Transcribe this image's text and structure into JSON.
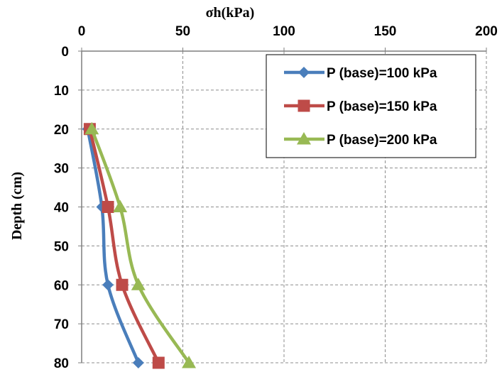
{
  "chart_data": {
    "type": "line",
    "xlabel": "σh(kPa)",
    "ylabel": "Depth (cm)",
    "x_axis_position": "top",
    "y_axis_inverted": true,
    "xlim": [
      0,
      200
    ],
    "ylim": [
      0,
      80
    ],
    "xticks": [
      0,
      50,
      100,
      150,
      200
    ],
    "yticks": [
      0,
      10,
      20,
      30,
      40,
      50,
      60,
      70,
      80
    ],
    "grid": true,
    "legend_position": "top-right",
    "series": [
      {
        "name": "P (base)=100 kPa",
        "color": "#4a7ebb",
        "marker": "diamond",
        "points": [
          {
            "x": 3,
            "y": 20
          },
          {
            "x": 10,
            "y": 40
          },
          {
            "x": 13,
            "y": 60
          },
          {
            "x": 28,
            "y": 80
          }
        ]
      },
      {
        "name": "P (base)=150 kPa",
        "color": "#be4b48",
        "marker": "square",
        "points": [
          {
            "x": 4,
            "y": 20
          },
          {
            "x": 13,
            "y": 40
          },
          {
            "x": 20,
            "y": 60
          },
          {
            "x": 38,
            "y": 80
          }
        ]
      },
      {
        "name": "P (base)=200 kPa",
        "color": "#98b954",
        "marker": "triangle",
        "points": [
          {
            "x": 5,
            "y": 20
          },
          {
            "x": 19,
            "y": 40
          },
          {
            "x": 28,
            "y": 60
          },
          {
            "x": 53,
            "y": 80
          }
        ]
      }
    ]
  }
}
